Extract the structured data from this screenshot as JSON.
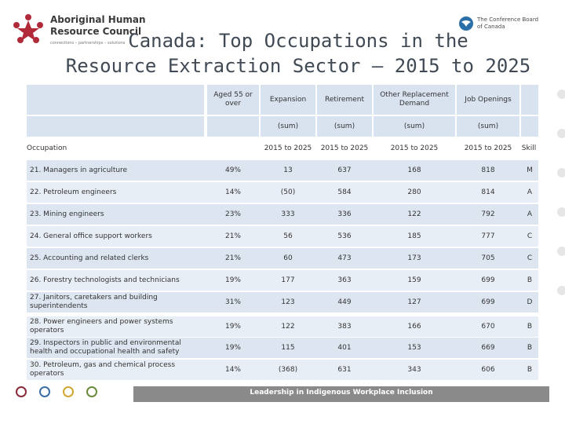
{
  "logos": {
    "org_name": "Aboriginal Human\nResource Council",
    "org_tagline": "connections – partnerships – solutions",
    "board_name": "The Conference Board\nof Canada"
  },
  "title": {
    "line1": "Canada: Top Occupations in the",
    "line2": "Resource Extraction Sector – 2015 to 2025"
  },
  "table": {
    "header": {
      "aged": "Aged 55 or over",
      "expansion": "Expansion",
      "retirement": "Retirement",
      "other": "Other Replacement Demand",
      "openings": "Job Openings",
      "sum": "(sum)",
      "period": "2015 to 2025",
      "occupation": "Occupation",
      "skill": "Skill"
    },
    "rows": [
      {
        "occ": "21. Managers in agriculture",
        "aged": "49%",
        "exp": "13",
        "ret": "637",
        "oth": "168",
        "job": "818",
        "skill": "M"
      },
      {
        "occ": "22. Petroleum engineers",
        "aged": "14%",
        "exp": "(50)",
        "ret": "584",
        "oth": "280",
        "job": "814",
        "skill": "A"
      },
      {
        "occ": "23. Mining engineers",
        "aged": "23%",
        "exp": "333",
        "ret": "336",
        "oth": "122",
        "job": "792",
        "skill": "A"
      },
      {
        "occ": "24. General office support workers",
        "aged": "21%",
        "exp": "56",
        "ret": "536",
        "oth": "185",
        "job": "777",
        "skill": "C"
      },
      {
        "occ": "25. Accounting and related clerks",
        "aged": "21%",
        "exp": "60",
        "ret": "473",
        "oth": "173",
        "job": "705",
        "skill": "C"
      },
      {
        "occ": "26. Forestry technologists and technicians",
        "aged": "19%",
        "exp": "177",
        "ret": "363",
        "oth": "159",
        "job": "699",
        "skill": "B"
      },
      {
        "occ": "27. Janitors, caretakers and building superintendents",
        "aged": "31%",
        "exp": "123",
        "ret": "449",
        "oth": "127",
        "job": "699",
        "skill": "D"
      },
      {
        "occ": "28. Power engineers and power systems operators",
        "aged": "19%",
        "exp": "122",
        "ret": "383",
        "oth": "166",
        "job": "670",
        "skill": "B"
      },
      {
        "occ": "29. Inspectors in public and environmental health and occupational health and safety",
        "aged": "19%",
        "exp": "115",
        "ret": "401",
        "oth": "153",
        "job": "669",
        "skill": "B"
      },
      {
        "occ": "30. Petroleum, gas and chemical process operators",
        "aged": "14%",
        "exp": "(368)",
        "ret": "631",
        "oth": "343",
        "job": "606",
        "skill": "B"
      }
    ]
  },
  "footer": {
    "banner": "Leadership in Indigenous Workplace Inclusion"
  },
  "colors": {
    "circles": [
      "#8b2a3a",
      "#3a6ea5",
      "#d1a531",
      "#6b8a3a"
    ]
  }
}
